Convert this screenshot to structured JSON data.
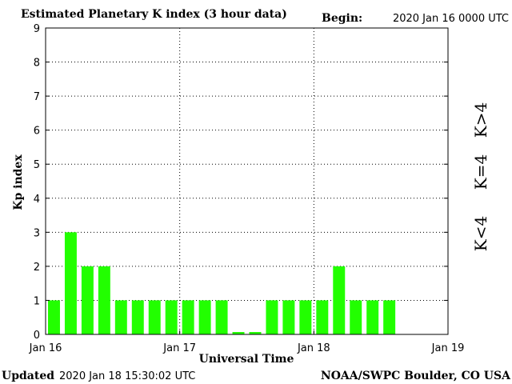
{
  "header": {
    "title": "Estimated Planetary K index (3 hour data)",
    "begin_label": "Begin:",
    "begin_value": "2020 Jan 16 0000 UTC"
  },
  "footer": {
    "updated_label": "Updated",
    "updated_value": "2020 Jan 18 15:30:02 UTC",
    "source": "NOAA/SWPC Boulder, CO USA"
  },
  "legend": {
    "high": {
      "label": "K>4",
      "color": "#ff2a00"
    },
    "mid": {
      "label": "K=4",
      "color": "#ffd700"
    },
    "low": {
      "label": "K<4",
      "color": "#22e000"
    }
  },
  "chart_data": {
    "type": "bar",
    "title": "Estimated Planetary K index (3 hour data)",
    "xlabel": "Universal Time",
    "ylabel": "Kp index",
    "ylim": [
      0,
      9
    ],
    "yticks": [
      "0",
      "1",
      "2",
      "3",
      "4",
      "5",
      "6",
      "7",
      "8",
      "9"
    ],
    "xticks": [
      "Jan 16",
      "Jan 17",
      "Jan 18",
      "Jan 19"
    ],
    "hours_per_bar": 3,
    "total_days": 3,
    "bar_color": "#22ff00",
    "grid": true,
    "values": [
      1,
      3,
      2,
      2,
      1,
      1,
      1,
      1,
      1,
      1,
      1,
      0.07,
      0.07,
      1,
      1,
      1,
      1,
      2,
      1,
      1,
      1
    ]
  }
}
